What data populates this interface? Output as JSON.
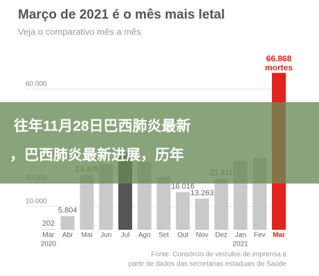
{
  "chart_data": {
    "type": "bar",
    "title": "Março de 2021 é o mês mais letal",
    "subtitle": "Veja o comparativo mês a mês",
    "categories": [
      "Mar",
      "Abr",
      "Mai",
      "Jun",
      "Jul",
      "Ago",
      "Set",
      "Out",
      "Nov",
      "Dez",
      "Jan",
      "Fev",
      "Mar"
    ],
    "category_groups": [
      {
        "label": "2020",
        "start": 0
      },
      {
        "label": "2021",
        "start": 10
      }
    ],
    "values": [
      202,
      5804,
      23335,
      28000,
      32800,
      28900,
      22600,
      16016,
      13263,
      21811,
      29500,
      30500,
      66868
    ],
    "value_labels": [
      "202",
      "5.804",
      "23.335",
      null,
      null,
      null,
      null,
      "16.016",
      "13.263",
      "21.811",
      null,
      null,
      "66.868"
    ],
    "unit_label": "mortes",
    "colors": [
      "#c9c9c9",
      "#c9c9c9",
      "#c9c9c9",
      "#c9c9c9",
      "#555555",
      "#c9c9c9",
      "#c9c9c9",
      "#c9c9c9",
      "#c9c9c9",
      "#c9c9c9",
      "#c9c9c9",
      "#c9c9c9",
      "#e3231c"
    ],
    "ylim": [
      0,
      70000
    ],
    "yticks": [
      {
        "value": 10000,
        "label": "10.000"
      },
      {
        "value": 20000,
        "label": "20.000"
      },
      {
        "value": 60000,
        "label": "60.000"
      }
    ],
    "grid": true,
    "source": [
      "Fonte: Consórcio de veículos de imprensa a",
      "partir de dados das secretarias estaduais de Saúde"
    ]
  },
  "overlay": {
    "lines": [
      "往年11月28日巴西肺炎最新",
      "，巴西肺炎最新进展，历年"
    ]
  }
}
